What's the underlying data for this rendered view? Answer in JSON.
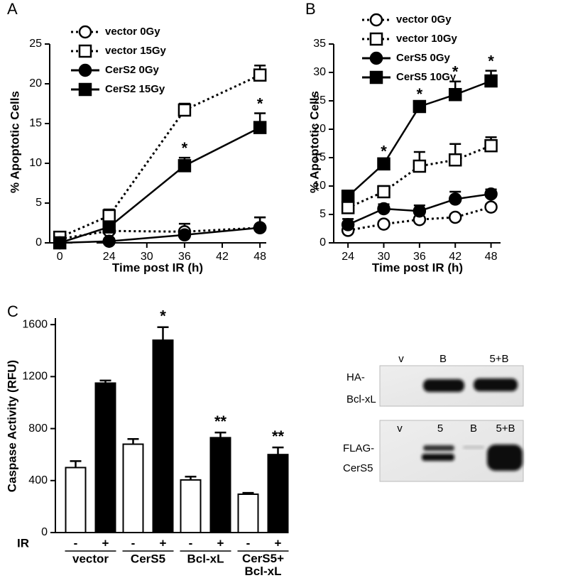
{
  "chart_data": [
    {
      "type": "line",
      "panel": "A",
      "ylabel": "% Apoptotic Cells",
      "xlabel": "Time post IR (h)",
      "x": [
        0,
        24,
        36,
        48
      ],
      "xlim": [
        -1.6,
        49
      ],
      "xbreak": [
        2,
        22
      ],
      "xticks": [
        0,
        24,
        30,
        36,
        42,
        48
      ],
      "ylim": [
        0,
        25
      ],
      "yticks": [
        0,
        5,
        10,
        15,
        20,
        25
      ],
      "series": [
        {
          "name": "vector 0Gy",
          "color": "#000000",
          "marker": "circle",
          "fill": "white",
          "dash": "dotted",
          "values": [
            0.5,
            1.5,
            1.4,
            1.9
          ],
          "errors": [
            0.3,
            0.5,
            1.0,
            1.3
          ]
        },
        {
          "name": "vector 15Gy",
          "color": "#000000",
          "marker": "square",
          "fill": "white",
          "dash": "dotted",
          "values": [
            0.7,
            3.4,
            16.7,
            21.1
          ],
          "errors": [
            0.3,
            0.8,
            0.8,
            1.2
          ]
        },
        {
          "name": "CerS2 0Gy",
          "color": "#000000",
          "marker": "circle",
          "fill": "black",
          "dash": "solid",
          "values": [
            0,
            0.2,
            1.0,
            1.9
          ],
          "errors": [
            0.2,
            0.3,
            0.6,
            1.3
          ]
        },
        {
          "name": "CerS2 15Gy",
          "color": "#000000",
          "marker": "square",
          "fill": "black",
          "dash": "solid",
          "values": [
            0,
            2.0,
            9.7,
            14.5
          ],
          "errors": [
            0.2,
            0.5,
            1.0,
            1.8
          ],
          "annotations": [
            null,
            null,
            "*",
            "*"
          ]
        }
      ]
    },
    {
      "type": "line",
      "panel": "B",
      "ylabel": "% Apoptotic Cells",
      "xlabel": "Time post IR (h)",
      "x": [
        24,
        30,
        36,
        42,
        48
      ],
      "xlim": [
        21.6,
        49.6
      ],
      "xticks": [
        24,
        30,
        36,
        42,
        48
      ],
      "ylim": [
        0,
        35
      ],
      "yticks": [
        0,
        5,
        10,
        15,
        20,
        25,
        30,
        35
      ],
      "series": [
        {
          "name": "vector 0Gy",
          "color": "#000000",
          "marker": "circle",
          "fill": "white",
          "dash": "dotted",
          "values": [
            2.2,
            3.3,
            4.1,
            4.5,
            6.3
          ],
          "errors": [
            0.3,
            0.5,
            0.4,
            0.5,
            0.5
          ]
        },
        {
          "name": "vector 10Gy",
          "color": "#000000",
          "marker": "square",
          "fill": "white",
          "dash": "dotted",
          "values": [
            6.2,
            9.0,
            13.5,
            14.6,
            17.1
          ],
          "errors": [
            1.0,
            1.0,
            2.5,
            2.8,
            1.5
          ]
        },
        {
          "name": "CerS5 0Gy",
          "color": "#000000",
          "marker": "circle",
          "fill": "black",
          "dash": "solid",
          "values": [
            3.2,
            6.0,
            5.6,
            7.7,
            8.6
          ],
          "errors": [
            1.0,
            0.8,
            1.0,
            1.3,
            0.8
          ]
        },
        {
          "name": "CerS5 10Gy",
          "color": "#000000",
          "marker": "square",
          "fill": "black",
          "dash": "solid",
          "values": [
            8.2,
            13.9,
            24.0,
            26.1,
            28.5
          ],
          "errors": [
            1.0,
            0.5,
            0.5,
            2.3,
            1.8
          ],
          "annotations": [
            null,
            "*",
            "*",
            "*",
            "*"
          ]
        }
      ]
    },
    {
      "type": "bar",
      "panel": "C",
      "ylabel": "Caspase Activity (RFU)",
      "row_label": "IR",
      "categories": [
        "vector",
        "CerS5",
        "Bcl-xL",
        "CerS5+ Bcl-xL"
      ],
      "ylim": [
        0,
        1650
      ],
      "yticks": [
        0,
        400,
        800,
        1200,
        1600
      ],
      "series": [
        {
          "name": "-",
          "color": "#ffffff",
          "values": [
            500,
            680,
            405,
            295
          ],
          "errors": [
            50,
            40,
            25,
            10
          ]
        },
        {
          "name": "+",
          "color": "#000000",
          "values": [
            1150,
            1480,
            730,
            600
          ],
          "errors": [
            20,
            100,
            40,
            55
          ],
          "annotations": [
            null,
            "*",
            "**",
            "**"
          ]
        }
      ]
    }
  ],
  "blots": [
    {
      "lanes": [
        "v",
        "B",
        "5+B"
      ],
      "label": [
        "HA-",
        "Bcl-xL"
      ]
    },
    {
      "lanes": [
        "v",
        "5",
        "B",
        "5+B"
      ],
      "label": [
        "FLAG-",
        "CerS5"
      ]
    }
  ]
}
